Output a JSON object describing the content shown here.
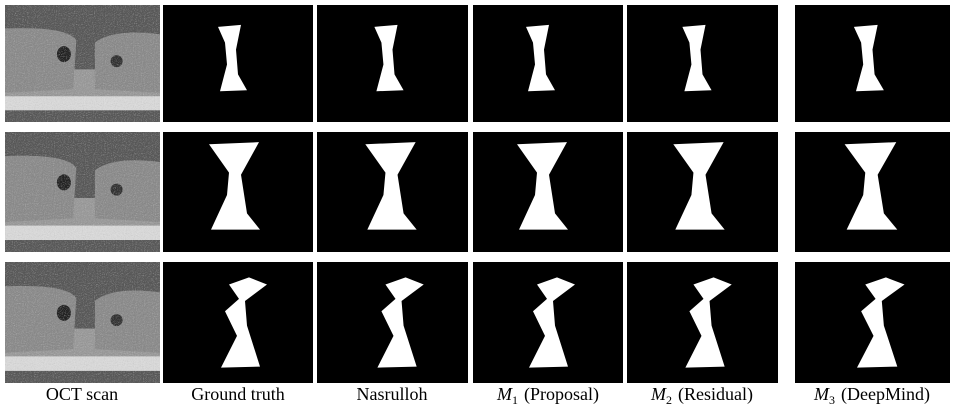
{
  "columns": [
    {
      "label": "OCT scan"
    },
    {
      "label": "Ground truth"
    },
    {
      "label": "Nasrulloh"
    },
    {
      "symbol": "M",
      "subscript": "1",
      "label": "(Proposal)"
    },
    {
      "symbol": "M",
      "subscript": "2",
      "label": "(Residual)"
    },
    {
      "symbol": "M",
      "subscript": "3",
      "label": "(DeepMind)"
    }
  ]
}
